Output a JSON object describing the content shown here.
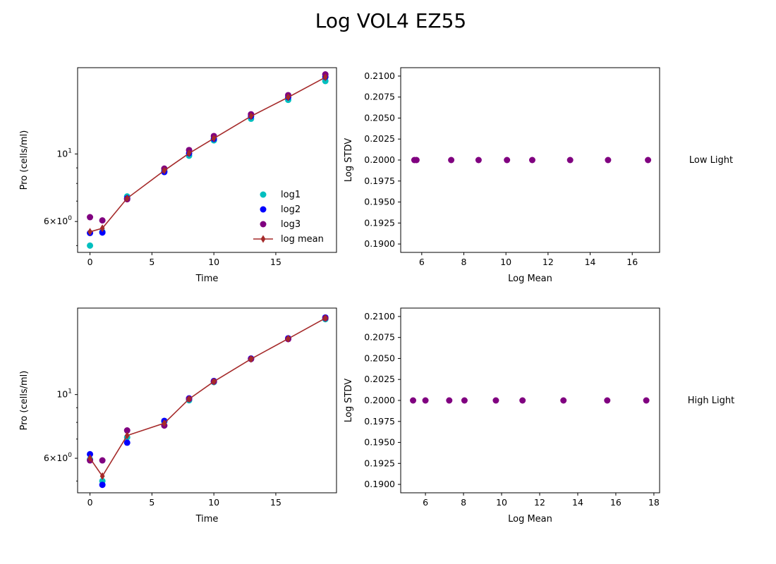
{
  "figure_title": "Log VOL4 EZ55",
  "chart_data": [
    {
      "type": "line",
      "panel": "top-left",
      "xlabel": "Time",
      "ylabel": "Pro (cells/ml)",
      "yscale": "log",
      "xlim": [
        -1.0,
        19.9
      ],
      "ylim": [
        4.75,
        19.2
      ],
      "xticks": [
        0,
        5,
        10,
        15
      ],
      "yticks": [
        {
          "value": 10,
          "label": "10^1"
        },
        {
          "value": 6,
          "label": "6×10^0"
        }
      ],
      "x": [
        0,
        1,
        3,
        6,
        8,
        10,
        13,
        16,
        19
      ],
      "series": [
        {
          "name": "log1",
          "kind": "scatter",
          "color": "#00bfbf",
          "values": [
            5.0,
            5.55,
            7.25,
            8.8,
            9.87,
            11.08,
            13.05,
            15.05,
            17.35
          ]
        },
        {
          "name": "log2",
          "kind": "scatter",
          "color": "#0000ff",
          "values": [
            5.5,
            5.52,
            7.15,
            8.72,
            10.05,
            11.2,
            13.3,
            15.35,
            17.9
          ]
        },
        {
          "name": " log3",
          "kind": "scatter",
          "color": "#800080",
          "values": [
            6.2,
            6.05,
            7.1,
            8.95,
            10.3,
            11.45,
            13.5,
            15.6,
            18.25
          ]
        },
        {
          "name": "log mean",
          "kind": "errorbar",
          "color": "#a52a2a",
          "values": [
            5.55,
            5.7,
            7.15,
            8.82,
            10.05,
            11.25,
            13.3,
            15.35,
            17.85
          ]
        }
      ],
      "legend": "lower-right"
    },
    {
      "type": "scatter",
      "panel": "top-right",
      "xlabel": "Log Mean",
      "ylabel": "Log STDV",
      "xlim": [
        5.0,
        17.3
      ],
      "ylim": [
        0.189,
        0.211
      ],
      "xticks": [
        6,
        8,
        10,
        12,
        14,
        16
      ],
      "yticks": [
        0.19,
        0.1925,
        0.195,
        0.1975,
        0.2,
        0.2025,
        0.205,
        0.2075,
        0.21
      ],
      "color": "#800080",
      "x": [
        5.65,
        5.75,
        7.4,
        8.7,
        10.05,
        11.25,
        13.05,
        14.85,
        16.75
      ],
      "y": [
        0.2,
        0.2,
        0.2,
        0.2,
        0.2,
        0.2,
        0.2,
        0.2,
        0.2
      ],
      "side_label": "Low Light"
    },
    {
      "type": "line",
      "panel": "bottom-left",
      "xlabel": "Time",
      "ylabel": "Pro (cells/ml)",
      "yscale": "log",
      "xlim": [
        -1.0,
        19.9
      ],
      "ylim": [
        4.55,
        20.0
      ],
      "xticks": [
        0,
        5,
        10,
        15
      ],
      "yticks": [
        {
          "value": 10,
          "label": "10^1"
        },
        {
          "value": 6,
          "label": "6×10^0"
        }
      ],
      "x": [
        0,
        1,
        3,
        6,
        8,
        10,
        13,
        16,
        19
      ],
      "series": [
        {
          "name": "log1",
          "kind": "scatter",
          "color": "#00bfbf",
          "values": [
            5.95,
            5.0,
            7.1,
            8.05,
            9.55,
            11.05,
            13.3,
            15.65,
            18.3
          ]
        },
        {
          "name": "log2",
          "kind": "scatter",
          "color": "#0000ff",
          "values": [
            6.2,
            4.85,
            6.8,
            8.1,
            9.7,
            11.15,
            13.35,
            15.7,
            18.55
          ]
        },
        {
          "name": " log3",
          "kind": "scatter",
          "color": "#800080",
          "values": [
            5.9,
            5.9,
            7.5,
            7.8,
            9.65,
            11.1,
            13.3,
            15.6,
            18.45
          ]
        },
        {
          "name": "log mean",
          "kind": "errorbar",
          "color": "#a52a2a",
          "values": [
            6.0,
            5.2,
            7.2,
            7.95,
            9.65,
            11.1,
            13.3,
            15.65,
            18.45
          ]
        }
      ]
    },
    {
      "type": "scatter",
      "panel": "bottom-right",
      "xlabel": "Log Mean",
      "ylabel": "Log STDV",
      "xlim": [
        4.7,
        18.3
      ],
      "ylim": [
        0.189,
        0.211
      ],
      "xticks": [
        6,
        8,
        10,
        12,
        14,
        16,
        18
      ],
      "yticks": [
        0.19,
        0.1925,
        0.195,
        0.1975,
        0.2,
        0.2025,
        0.205,
        0.2075,
        0.21
      ],
      "color": "#800080",
      "x": [
        5.35,
        6.0,
        7.25,
        8.05,
        9.7,
        11.1,
        13.25,
        15.55,
        17.6
      ],
      "y": [
        0.2,
        0.2,
        0.2,
        0.2,
        0.2,
        0.2,
        0.2,
        0.2,
        0.2
      ],
      "side_label": "High Light"
    }
  ]
}
